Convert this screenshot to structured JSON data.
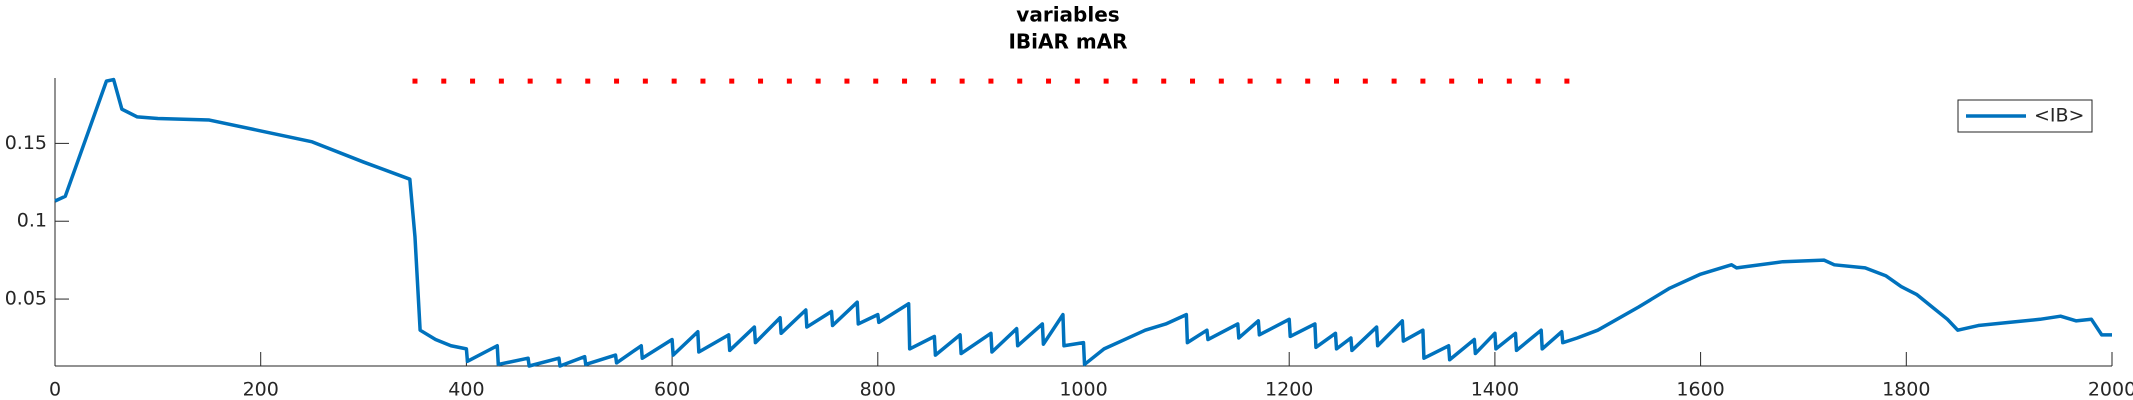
{
  "chart_data": {
    "type": "line",
    "title": "variables",
    "subtitle": "IBiAR mAR",
    "xlim": [
      0,
      2000
    ],
    "ylim": [
      0.007,
      0.192
    ],
    "xticks": [
      0,
      200,
      400,
      600,
      800,
      1000,
      1200,
      1400,
      1600,
      1800,
      2000
    ],
    "yticks": [
      0.05,
      0.1,
      0.15
    ],
    "legend": "upper right",
    "series": [
      {
        "name": "<IB>",
        "color": "#0072bd",
        "x": [
          0,
          10,
          30,
          50,
          57,
          65,
          80,
          100,
          150,
          200,
          250,
          300,
          345,
          350,
          355,
          370,
          385,
          400,
          401,
          430,
          431,
          460,
          461,
          490,
          491,
          515,
          516,
          545,
          546,
          570,
          571,
          600,
          601,
          625,
          626,
          655,
          656,
          680,
          681,
          705,
          706,
          730,
          731,
          755,
          756,
          780,
          781,
          800,
          801,
          830,
          831,
          855,
          856,
          880,
          881,
          910,
          911,
          935,
          936,
          960,
          961,
          980,
          981,
          1000,
          1001,
          1020,
          1040,
          1060,
          1080,
          1100,
          1101,
          1120,
          1121,
          1150,
          1151,
          1170,
          1171,
          1200,
          1201,
          1225,
          1226,
          1245,
          1246,
          1260,
          1261,
          1285,
          1286,
          1310,
          1311,
          1330,
          1331,
          1355,
          1356,
          1380,
          1381,
          1400,
          1401,
          1420,
          1421,
          1445,
          1446,
          1465,
          1466,
          1480,
          1500,
          1540,
          1570,
          1600,
          1630,
          1635,
          1680,
          1720,
          1730,
          1760,
          1780,
          1795,
          1810,
          1825,
          1840,
          1850,
          1870,
          1900,
          1930,
          1950,
          1965,
          1980,
          1990,
          2000
        ],
        "values": [
          0.113,
          0.116,
          0.153,
          0.19,
          0.191,
          0.172,
          0.167,
          0.166,
          0.165,
          0.158,
          0.151,
          0.138,
          0.127,
          0.09,
          0.03,
          0.024,
          0.02,
          0.018,
          0.01,
          0.02,
          0.008,
          0.012,
          0.007,
          0.012,
          0.007,
          0.013,
          0.008,
          0.014,
          0.009,
          0.02,
          0.012,
          0.024,
          0.014,
          0.029,
          0.016,
          0.027,
          0.017,
          0.032,
          0.022,
          0.038,
          0.028,
          0.043,
          0.032,
          0.042,
          0.033,
          0.048,
          0.034,
          0.04,
          0.035,
          0.047,
          0.018,
          0.026,
          0.014,
          0.027,
          0.015,
          0.028,
          0.016,
          0.031,
          0.02,
          0.034,
          0.021,
          0.04,
          0.02,
          0.022,
          0.008,
          0.018,
          0.024,
          0.03,
          0.034,
          0.04,
          0.022,
          0.03,
          0.024,
          0.034,
          0.025,
          0.036,
          0.027,
          0.037,
          0.026,
          0.034,
          0.019,
          0.028,
          0.018,
          0.025,
          0.017,
          0.032,
          0.02,
          0.036,
          0.023,
          0.03,
          0.012,
          0.02,
          0.011,
          0.024,
          0.015,
          0.028,
          0.018,
          0.028,
          0.017,
          0.03,
          0.018,
          0.029,
          0.022,
          0.025,
          0.03,
          0.045,
          0.057,
          0.066,
          0.072,
          0.07,
          0.074,
          0.075,
          0.072,
          0.07,
          0.065,
          0.058,
          0.053,
          0.045,
          0.037,
          0.03,
          0.033,
          0.035,
          0.037,
          0.039,
          0.036,
          0.037,
          0.027,
          0.027
        ]
      },
      {
        "color": "#ff0000",
        "marker": "dot",
        "x": [
          350,
          378,
          406,
          434,
          462,
          490,
          518,
          546,
          574,
          602,
          630,
          658,
          686,
          714,
          742,
          770,
          798,
          826,
          854,
          882,
          910,
          938,
          966,
          994,
          1022,
          1050,
          1078,
          1106,
          1134,
          1162,
          1190,
          1218,
          1246,
          1274,
          1302,
          1330,
          1358,
          1386,
          1414,
          1442,
          1470
        ],
        "values": [
          0.19,
          0.19,
          0.19,
          0.19,
          0.19,
          0.19,
          0.19,
          0.19,
          0.19,
          0.19,
          0.19,
          0.19,
          0.19,
          0.19,
          0.19,
          0.19,
          0.19,
          0.19,
          0.19,
          0.19,
          0.19,
          0.19,
          0.19,
          0.19,
          0.19,
          0.19,
          0.19,
          0.19,
          0.19,
          0.19,
          0.19,
          0.19,
          0.19,
          0.19,
          0.19,
          0.19,
          0.19,
          0.19,
          0.19,
          0.19,
          0.19
        ]
      }
    ]
  }
}
